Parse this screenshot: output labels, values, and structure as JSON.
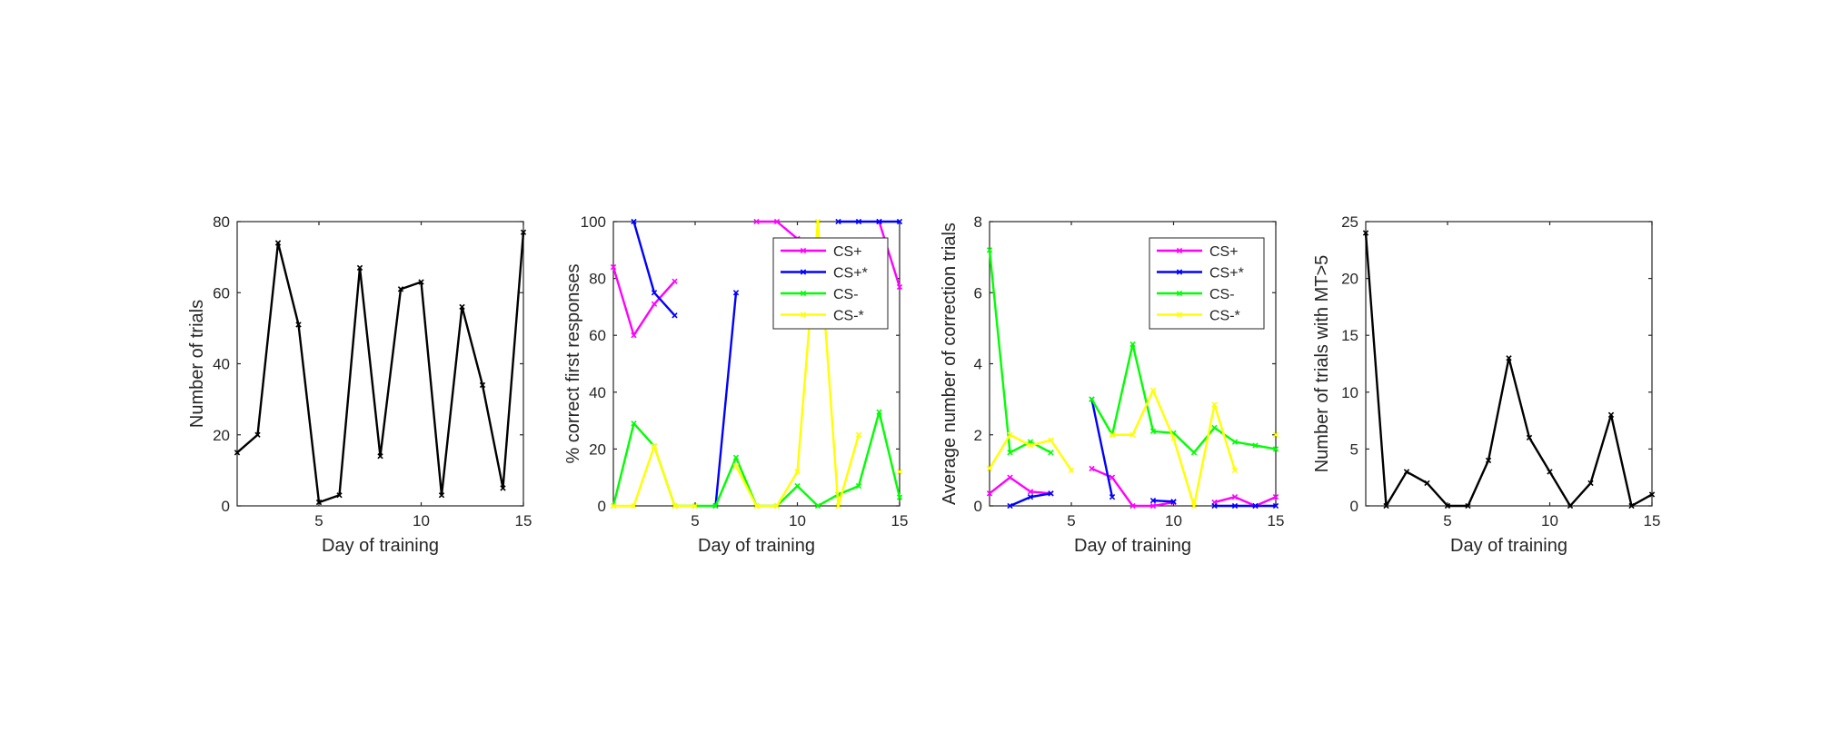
{
  "chart_data": [
    {
      "type": "line",
      "xlabel": "Day of training",
      "ylabel": "Number of trials",
      "xlim": [
        1,
        15
      ],
      "ylim": [
        0,
        80
      ],
      "xticks": [
        5,
        10,
        15
      ],
      "yticks": [
        0,
        20,
        40,
        60,
        80
      ],
      "grid": false,
      "legend": null,
      "series": [
        {
          "color": "#000000",
          "x": [
            1,
            2,
            3,
            4,
            5,
            6,
            7,
            8,
            9,
            10,
            11,
            12,
            13,
            14,
            15
          ],
          "values": [
            15,
            20,
            74,
            51,
            1,
            3,
            67,
            14,
            61,
            63,
            3,
            56,
            34,
            5,
            77
          ]
        }
      ]
    },
    {
      "type": "line",
      "xlabel": "Day of training",
      "ylabel": "% correct first responses",
      "xlim": [
        1,
        15
      ],
      "ylim": [
        0,
        100
      ],
      "xticks": [
        5,
        10,
        15
      ],
      "yticks": [
        0,
        20,
        40,
        60,
        80,
        100
      ],
      "grid": false,
      "legend": "top-right",
      "series": [
        {
          "name": "CS+",
          "color": "#ff00ff",
          "x": [
            1,
            2,
            3,
            4,
            5,
            6,
            7,
            8,
            9,
            10,
            11,
            12,
            13,
            14,
            15
          ],
          "values": [
            84,
            60,
            71,
            79,
            null,
            null,
            null,
            100,
            100,
            94,
            null,
            null,
            null,
            100,
            77
          ]
        },
        {
          "name": "CS+*",
          "color": "#0000ff",
          "x": [
            1,
            2,
            3,
            4,
            5,
            6,
            7,
            8,
            9,
            10,
            11,
            12,
            13,
            14,
            15
          ],
          "values": [
            null,
            100,
            75,
            67,
            null,
            0,
            75,
            null,
            null,
            null,
            null,
            100,
            100,
            100,
            100
          ]
        },
        {
          "name": "CS-",
          "color": "#00ff00",
          "x": [
            1,
            2,
            3,
            4,
            5,
            6,
            7,
            8,
            9,
            10,
            11,
            12,
            13,
            14,
            15
          ],
          "values": [
            0,
            29,
            21,
            0,
            0,
            0,
            17,
            0,
            0,
            7,
            0,
            4,
            7,
            33,
            3
          ]
        },
        {
          "name": "CS-*",
          "color": "#ffff00",
          "x": [
            1,
            2,
            3,
            4,
            5,
            6,
            7,
            8,
            9,
            10,
            11,
            12,
            13,
            14,
            15
          ],
          "values": [
            0,
            0,
            21,
            0,
            0,
            null,
            14,
            0,
            0,
            12,
            100,
            0,
            25,
            null,
            12
          ]
        }
      ]
    },
    {
      "type": "line",
      "xlabel": "Day of training",
      "ylabel": "Average number of correction trials",
      "xlim": [
        1,
        15
      ],
      "ylim": [
        0,
        8
      ],
      "xticks": [
        5,
        10,
        15
      ],
      "yticks": [
        0,
        2,
        4,
        6,
        8
      ],
      "grid": false,
      "legend": "top-right",
      "series": [
        {
          "name": "CS+",
          "color": "#ff00ff",
          "x": [
            1,
            2,
            3,
            4,
            5,
            6,
            7,
            8,
            9,
            10,
            11,
            12,
            13,
            14,
            15
          ],
          "values": [
            0.35,
            0.8,
            0.4,
            0.35,
            null,
            1.05,
            0.8,
            0,
            0,
            0.1,
            null,
            0.1,
            0.25,
            0,
            0.25
          ]
        },
        {
          "name": "CS+*",
          "color": "#0000ff",
          "x": [
            1,
            2,
            3,
            4,
            5,
            6,
            7,
            8,
            9,
            10,
            11,
            12,
            13,
            14,
            15
          ],
          "values": [
            null,
            0,
            0.25,
            0.35,
            null,
            3.0,
            0.25,
            null,
            0.15,
            0.12,
            null,
            0,
            0,
            0,
            0
          ]
        },
        {
          "name": "CS-",
          "color": "#00ff00",
          "x": [
            1,
            2,
            3,
            4,
            5,
            6,
            7,
            8,
            9,
            10,
            11,
            12,
            13,
            14,
            15
          ],
          "values": [
            7.2,
            1.5,
            1.8,
            1.5,
            null,
            3.0,
            2.0,
            4.55,
            2.1,
            2.05,
            1.5,
            2.2,
            1.8,
            1.7,
            1.6
          ]
        },
        {
          "name": "CS-*",
          "color": "#ffff00",
          "x": [
            1,
            2,
            3,
            4,
            5,
            6,
            7,
            8,
            9,
            10,
            11,
            12,
            13,
            14,
            15
          ],
          "values": [
            1.05,
            2.0,
            1.7,
            1.85,
            1.0,
            null,
            2.0,
            2.0,
            3.25,
            1.9,
            0,
            2.85,
            1.0,
            null,
            2.0
          ]
        }
      ]
    },
    {
      "type": "line",
      "xlabel": "Day of training",
      "ylabel": "Number of trials with MT>5",
      "xlim": [
        1,
        15
      ],
      "ylim": [
        0,
        25
      ],
      "xticks": [
        5,
        10,
        15
      ],
      "yticks": [
        0,
        5,
        10,
        15,
        20,
        25
      ],
      "grid": false,
      "legend": null,
      "series": [
        {
          "color": "#000000",
          "x": [
            1,
            2,
            3,
            4,
            5,
            6,
            7,
            8,
            9,
            10,
            11,
            12,
            13,
            14,
            15
          ],
          "values": [
            24,
            0,
            3,
            2,
            0,
            0,
            4,
            13,
            6,
            3,
            0,
            2,
            8,
            0,
            1
          ]
        }
      ]
    }
  ]
}
